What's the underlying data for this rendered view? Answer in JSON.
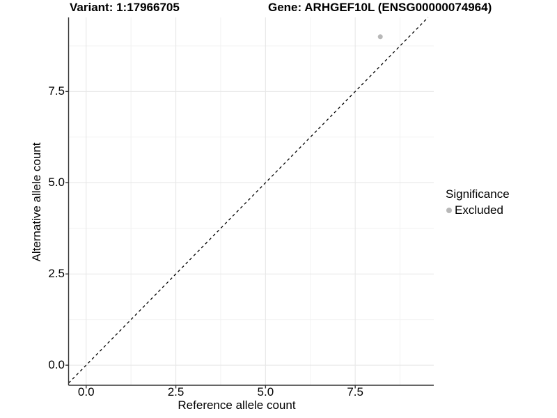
{
  "chart_data": {
    "type": "scatter",
    "title_left": "Variant: 1:17966705",
    "title_right": "Gene: ARHGEF10L (ENSG00000074964)",
    "xlabel": "Reference allele count",
    "ylabel": "Alternative allele count",
    "xlim": [
      -0.49,
      9.69
    ],
    "ylim": [
      -0.55,
      9.53
    ],
    "x_major_ticks": [
      0,
      2.5,
      5,
      7.5
    ],
    "y_major_ticks": [
      0,
      2.5,
      5,
      7.5
    ],
    "x_tick_labels": [
      "0.0",
      "2.5",
      "5.0",
      "7.5"
    ],
    "y_tick_labels": [
      "0.0",
      "2.5",
      "5.0",
      "7.5"
    ],
    "grid": {
      "major": true,
      "minor": true
    },
    "reference_line": {
      "kind": "identity",
      "equation": "y = x",
      "linetype": "dashed",
      "color": "#000000"
    },
    "series": [
      {
        "name": "Excluded",
        "color": "#b8b8b8",
        "points": [
          {
            "x": 8.2,
            "y": 9.0
          }
        ]
      }
    ],
    "legend": {
      "title": "Significance",
      "position": "right",
      "items": [
        {
          "label": "Excluded",
          "color": "#b8b8b8"
        }
      ]
    },
    "colors": {
      "background": "#ffffff",
      "grid_major": "#e7e7e7",
      "grid_minor": "#f2f2f2",
      "axis_line": "#333333",
      "text": "#000000"
    }
  }
}
